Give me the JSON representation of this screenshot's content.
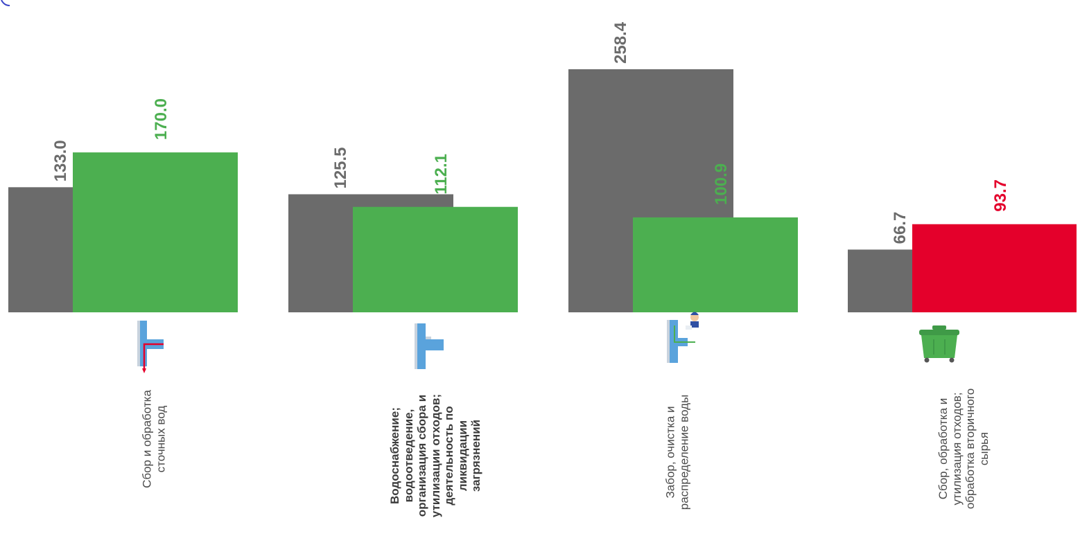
{
  "chart_data": {
    "type": "bar",
    "categories": [
      "Сбор и обработка сточных вод",
      "Водоснабжение; водоотведение, организация сбора и утилизации отходов; деятельность по ликвидации загрязнений",
      "Забор, очистка и распределение воды",
      "Сбор, обработка и утилизация отходов; обработка вторичного сырья"
    ],
    "category_lines": [
      [
        "Сбор и обработка",
        "сточных вод"
      ],
      [
        "Водоснабжение;",
        "водоотведение,",
        "организация сбора и",
        "утилизации отходов;",
        "деятельность по",
        "ликвидации",
        "загрязнений"
      ],
      [
        "Забор, очистка и",
        "распределение воды"
      ],
      [
        "Сбор, обработка и",
        "утилизация отходов;",
        "обработка вторичного",
        "сырья"
      ]
    ],
    "category_bold": [
      false,
      true,
      false,
      false
    ],
    "category_icons": [
      "pipe-red-flow-icon",
      "pipe-tee-icon",
      "pipe-worker-icon",
      "trash-bin-icon"
    ],
    "series": [
      {
        "values": [
          133.0,
          125.5,
          258.4,
          66.7
        ],
        "color": "#6b6b6b"
      },
      {
        "values": [
          170.0,
          112.1,
          100.9,
          93.7
        ],
        "colors": [
          "#4caf50",
          "#4caf50",
          "#4caf50",
          "#e4002b"
        ]
      }
    ],
    "value_labels": [
      [
        "133.0",
        "125.5",
        "258.4",
        "66.7"
      ],
      [
        "170.0",
        "112.1",
        "100.9",
        "93.7"
      ]
    ],
    "ylim": [
      0,
      260
    ],
    "grid": false,
    "legend": "none"
  }
}
